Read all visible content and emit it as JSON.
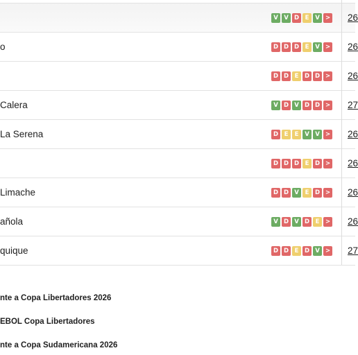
{
  "rows": [
    {
      "team": "",
      "form": [
        "V",
        "V",
        "D",
        "E",
        "V",
        ">"
      ],
      "next": "26"
    },
    {
      "team": "o",
      "form": [
        "D",
        "D",
        "D",
        "E",
        "V",
        ">"
      ],
      "next": "26"
    },
    {
      "team": "",
      "form": [
        "D",
        "D",
        "E",
        "D",
        "D",
        ">"
      ],
      "next": "26"
    },
    {
      "team": "Calera",
      "form": [
        "V",
        "D",
        "V",
        "D",
        "D",
        ">"
      ],
      "next": "27"
    },
    {
      "team": "La Serena",
      "form": [
        "D",
        "E",
        "E",
        "V",
        "V",
        ">"
      ],
      "next": "26"
    },
    {
      "team": "",
      "form": [
        "D",
        "D",
        "D",
        "E",
        "D",
        ">"
      ],
      "next": "26"
    },
    {
      "team": "Limache",
      "form": [
        "D",
        "D",
        "V",
        "E",
        "D",
        ">"
      ],
      "next": "26"
    },
    {
      "team": "añola",
      "form": [
        "V",
        "D",
        "V",
        "D",
        "E",
        ">"
      ],
      "next": "26"
    },
    {
      "team": "quique",
      "form": [
        "D",
        "D",
        "E",
        "D",
        "V",
        ">"
      ],
      "next": "27"
    }
  ],
  "legend": [
    "nte a Copa Libertadores 2026",
    "EBOL Copa Libertadores",
    "nte a Copa Sudamericana 2026"
  ],
  "colors": {
    "win": "#6dac63",
    "loss": "#e06767",
    "draw": "#efcf6e"
  }
}
